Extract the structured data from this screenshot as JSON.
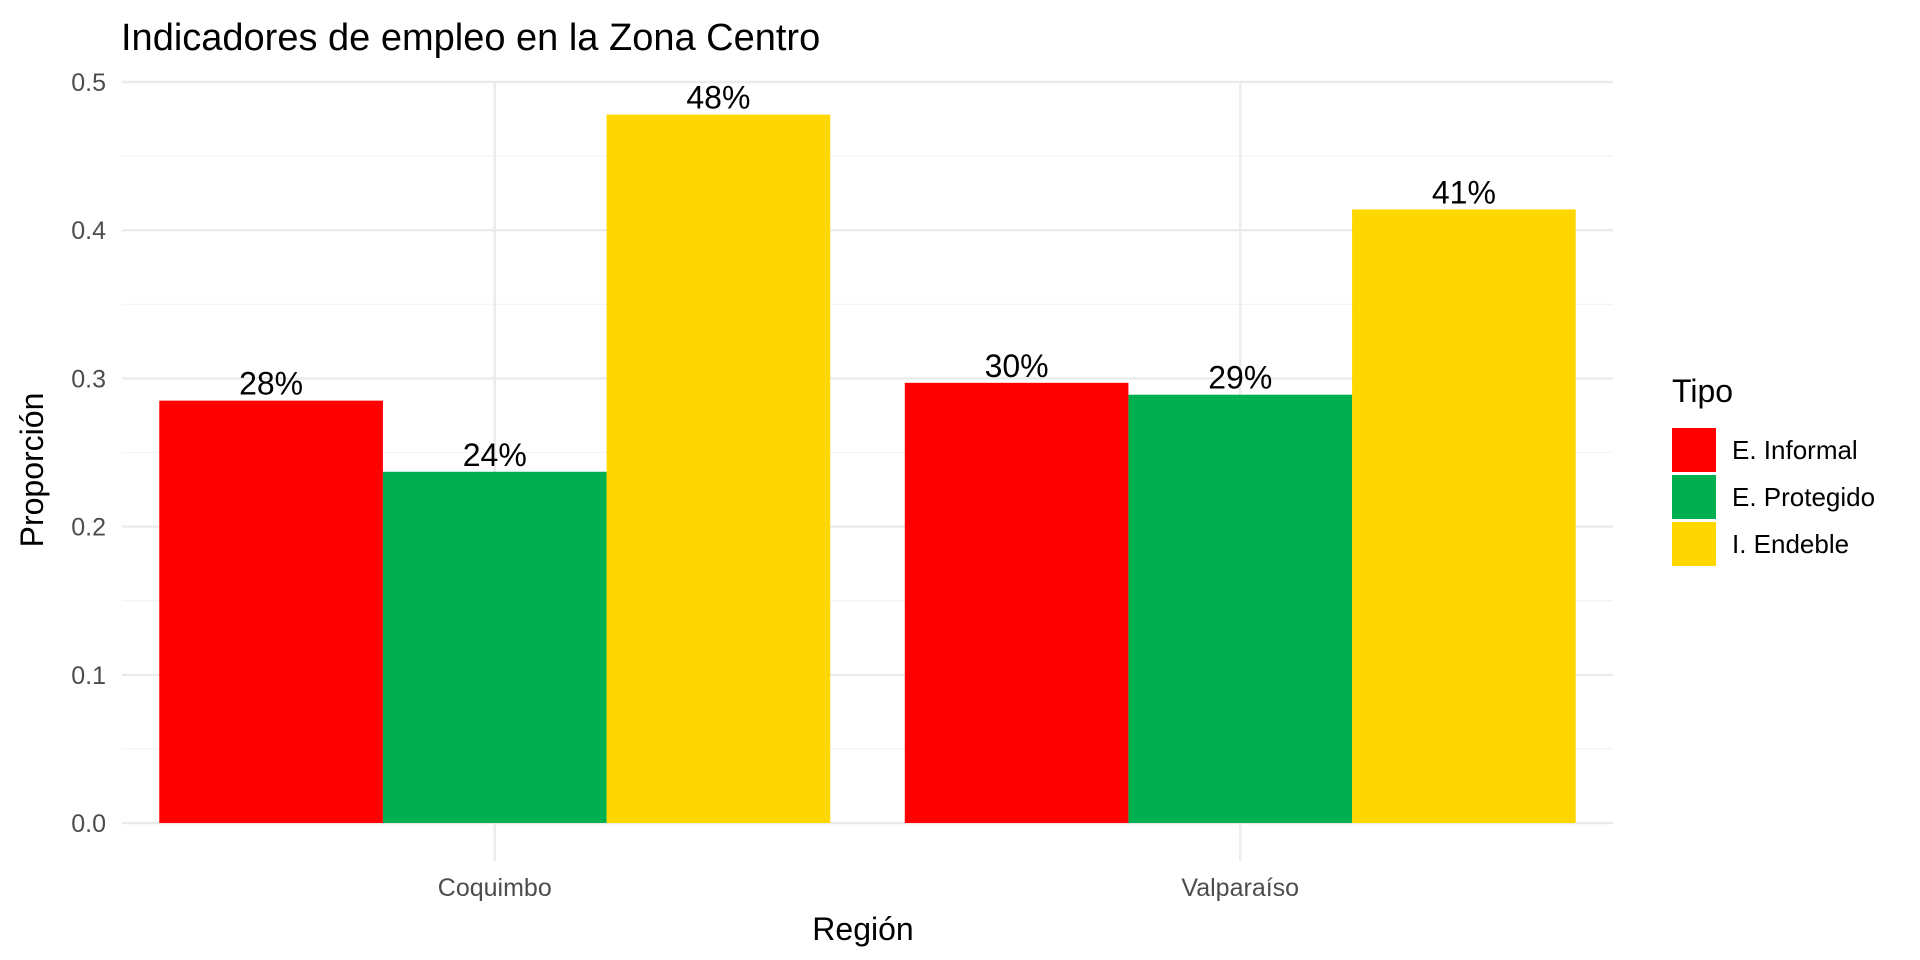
{
  "chart_data": {
    "type": "bar",
    "title": "Indicadores de empleo en la Zona Centro",
    "xlabel": "Región",
    "ylabel": "Proporción",
    "categories": [
      "Coquimbo",
      "Valparaíso"
    ],
    "series": [
      {
        "name": "E. Informal",
        "color": "#ff0000",
        "values": [
          0.285,
          0.297
        ],
        "labels": [
          "28%",
          "30%"
        ]
      },
      {
        "name": "E. Protegido",
        "color": "#00b050",
        "values": [
          0.237,
          0.289
        ],
        "labels": [
          "24%",
          "29%"
        ]
      },
      {
        "name": "I. Endeble",
        "color": "#ffd700",
        "values": [
          0.478,
          0.414
        ],
        "labels": [
          "48%",
          "41%"
        ]
      }
    ],
    "ylim": [
      0,
      0.5
    ],
    "yticks": [
      "0.0",
      "0.1",
      "0.2",
      "0.3",
      "0.4",
      "0.5"
    ],
    "legend_title": "Tipo",
    "legend_position": "right",
    "grid": true
  }
}
